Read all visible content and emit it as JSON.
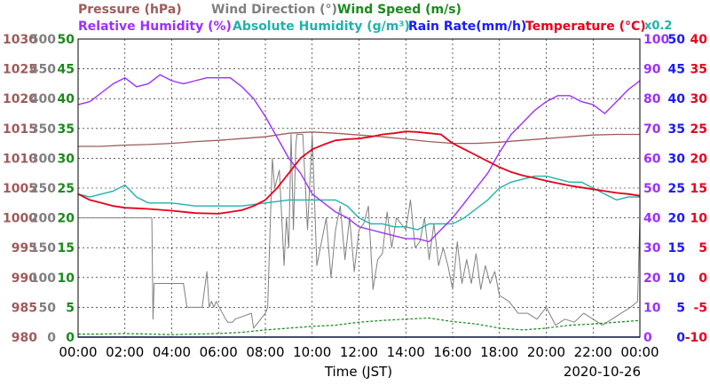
{
  "chart_data": {
    "type": "line",
    "date": "2020-10-26",
    "xlabel": "Time (JST)",
    "x_ticks": [
      "00:00",
      "02:00",
      "04:00",
      "06:00",
      "08:00",
      "10:00",
      "12:00",
      "14:00",
      "16:00",
      "18:00",
      "20:00",
      "22:00",
      "00:00"
    ],
    "grid": true,
    "axes": [
      {
        "name": "Pressure (hPa)",
        "color": "#a05a5a",
        "range": [
          980,
          1030
        ],
        "ticks": [
          "1030",
          "1025",
          "1020",
          "1015",
          "1010",
          "1005",
          "1000",
          "995",
          "990",
          "985",
          "980"
        ]
      },
      {
        "name": "Wind Direction (°)",
        "color": "#808080",
        "range": [
          0,
          500
        ],
        "ticks": [
          "500",
          "450",
          "400",
          "350",
          "300",
          "250",
          "200",
          "150",
          "100",
          "50",
          "0"
        ]
      },
      {
        "name": "Wind Speed (m/s)",
        "color": "#1a8a1a",
        "range": [
          0,
          50
        ],
        "ticks": [
          "50",
          "45",
          "40",
          "35",
          "30",
          "25",
          "20",
          "15",
          "10",
          "5",
          "0"
        ]
      },
      {
        "name": "Relative Humidity (%)",
        "color": "#9b30ff",
        "range": [
          0,
          100
        ],
        "ticks": [
          "100",
          "90",
          "80",
          "70",
          "60",
          "50",
          "40",
          "30",
          "20",
          "10",
          "0"
        ]
      },
      {
        "name": "Absolute Humidity (g/m³) x0.2",
        "color": "#20b2aa",
        "range": [
          0,
          100
        ],
        "ticks": []
      },
      {
        "name": "Rain Rate(mm/h)",
        "color": "#1a1aff",
        "range": [
          0,
          50
        ],
        "ticks": [
          "50",
          "45",
          "40",
          "35",
          "30",
          "25",
          "20",
          "15",
          "10",
          "5",
          "0"
        ]
      },
      {
        "name": "Temperature (°C)",
        "color": "#e8001c",
        "range": [
          -10,
          40
        ],
        "ticks": [
          "40",
          "35",
          "30",
          "25",
          "20",
          "15",
          "10",
          "5",
          "0",
          "-5",
          "-10"
        ]
      }
    ],
    "legend_row1": [
      "Pressure (hPa)",
      "Wind Direction (°)",
      "Wind Speed (m/s)"
    ],
    "legend_row2": [
      "Relative Humidity (%)",
      "Absolute Humidity (g/m³)",
      "Rain Rate(mm/h)",
      "Temperature (°C)"
    ],
    "ah_scale_note": "x0.2",
    "series": [
      {
        "name": "Pressure",
        "axis": 0,
        "color": "#a05a5a",
        "x": [
          0,
          1,
          2,
          3,
          4,
          5,
          6,
          7,
          8,
          9,
          10,
          11,
          12,
          13,
          14,
          15,
          16,
          17,
          18,
          19,
          20,
          21,
          22,
          23,
          24
        ],
        "values": [
          1012,
          1012,
          1012.2,
          1012.3,
          1012.5,
          1012.8,
          1013,
          1013.3,
          1013.6,
          1014.2,
          1014.4,
          1014.2,
          1013.9,
          1013.6,
          1013.2,
          1012.8,
          1012.5,
          1012.5,
          1012.7,
          1013,
          1013.3,
          1013.6,
          1013.9,
          1014,
          1014
        ]
      },
      {
        "name": "Wind Direction",
        "axis": 1,
        "color": "#808080",
        "x": [
          0,
          0.05,
          3.15,
          3.2,
          3.25,
          3.35,
          4.5,
          4.65,
          5.3,
          5.5,
          5.6,
          5.7,
          5.8,
          5.9,
          6.3,
          6.4,
          6.6,
          6.7,
          7.4,
          7.5,
          8.0,
          8.1,
          8.2,
          8.3,
          8.4,
          8.6,
          8.8,
          8.9,
          9.0,
          9.1,
          9.2,
          9.3,
          9.35,
          9.4,
          9.6,
          9.8,
          10.0,
          10.2,
          10.4,
          10.6,
          10.8,
          11.0,
          11.2,
          11.4,
          11.6,
          11.8,
          12.0,
          12.2,
          12.4,
          12.6,
          12.8,
          13.0,
          13.2,
          13.4,
          13.6,
          13.8,
          14.0,
          14.2,
          14.4,
          14.6,
          14.8,
          15.0,
          15.2,
          15.4,
          15.6,
          15.8,
          16.0,
          16.2,
          16.4,
          16.6,
          16.8,
          17.0,
          17.2,
          17.4,
          17.6,
          17.8,
          18.0,
          18.4,
          18.8,
          19.2,
          19.6,
          20.0,
          20.4,
          20.8,
          21.2,
          21.6,
          22.0,
          22.4,
          22.8,
          23.2,
          23.6,
          23.9,
          24
        ],
        "values": [
          200,
          200,
          200,
          30,
          90,
          90,
          90,
          50,
          50,
          110,
          50,
          60,
          50,
          60,
          30,
          25,
          25,
          30,
          40,
          15,
          40,
          50,
          180,
          300,
          250,
          280,
          120,
          200,
          150,
          340,
          180,
          320,
          340,
          340,
          340,
          180,
          340,
          120,
          160,
          200,
          100,
          180,
          220,
          130,
          200,
          110,
          180,
          190,
          220,
          80,
          130,
          140,
          210,
          150,
          200,
          190,
          180,
          230,
          150,
          160,
          200,
          130,
          190,
          120,
          150,
          120,
          80,
          160,
          90,
          130,
          90,
          140,
          80,
          120,
          90,
          110,
          70,
          60,
          40,
          40,
          30,
          50,
          20,
          30,
          25,
          40,
          30,
          20,
          30,
          40,
          50,
          60,
          200
        ]
      },
      {
        "name": "Wind Speed",
        "axis": 2,
        "color": "#1a8a1a",
        "x": [
          0,
          1,
          2,
          3,
          4,
          5,
          6,
          7,
          8,
          9,
          10,
          11,
          12,
          13,
          14,
          15,
          16,
          17,
          18,
          19,
          20,
          21,
          22,
          23,
          24
        ],
        "values": [
          0.5,
          0.5,
          0.6,
          0.5,
          0.4,
          0.5,
          0.6,
          0.8,
          1.2,
          1.5,
          1.8,
          2,
          2.5,
          2.8,
          3,
          3.2,
          2.6,
          2.2,
          1.5,
          1.2,
          1.5,
          2,
          2.2,
          2.5,
          2.8
        ]
      },
      {
        "name": "Relative Humidity",
        "axis": 3,
        "color": "#9b30ff",
        "x": [
          0,
          0.5,
          1,
          1.5,
          2,
          2.5,
          3,
          3.5,
          4,
          4.5,
          5,
          5.5,
          6,
          6.5,
          7,
          7.5,
          8,
          8.5,
          9,
          9.5,
          10,
          10.5,
          11,
          11.5,
          12,
          12.5,
          13,
          13.5,
          14,
          14.5,
          15,
          15.5,
          16,
          16.5,
          17,
          17.5,
          18,
          18.5,
          19,
          19.5,
          20,
          20.5,
          21,
          21.5,
          22,
          22.5,
          23,
          23.5,
          24
        ],
        "values": [
          78,
          79,
          82,
          85,
          87,
          84,
          85,
          88,
          86,
          85,
          86,
          87,
          87,
          87,
          84,
          80,
          74,
          67,
          60,
          55,
          48,
          45,
          42,
          40,
          37,
          36,
          35,
          34,
          33,
          33,
          32,
          36,
          40,
          45,
          50,
          55,
          62,
          68,
          72,
          76,
          79,
          81,
          81,
          79,
          78,
          75,
          79,
          83,
          86
        ]
      },
      {
        "name": "Absolute Humidity",
        "axis": 4,
        "color": "#20b2aa",
        "x": [
          0,
          0.5,
          1,
          1.5,
          2,
          2.5,
          3,
          4,
          5,
          6,
          7,
          8,
          9,
          10,
          10.5,
          11,
          11.5,
          12,
          12.5,
          13,
          13.5,
          14,
          14.5,
          15,
          15.5,
          16,
          16.5,
          17,
          17.5,
          18,
          18.5,
          19,
          19.5,
          20,
          20.5,
          21,
          21.5,
          22,
          22.5,
          23,
          23.5,
          24
        ],
        "values": [
          48,
          47,
          48,
          49,
          51,
          47,
          45,
          45,
          44,
          44,
          44,
          45,
          46,
          46,
          46,
          46,
          44,
          40,
          38,
          38,
          37,
          37,
          36,
          38,
          38,
          38,
          40,
          43,
          46,
          50,
          52,
          53,
          54,
          54,
          53,
          52,
          52,
          50,
          48,
          46,
          47,
          47
        ]
      },
      {
        "name": "Rain Rate",
        "axis": 5,
        "color": "#1a1aff",
        "x": [
          0,
          24
        ],
        "values": [
          0,
          0
        ]
      },
      {
        "name": "Temperature",
        "axis": 6,
        "color": "#e8001c",
        "x": [
          0,
          0.5,
          1,
          1.5,
          2,
          2.5,
          3,
          4,
          5,
          6,
          7,
          7.5,
          8,
          8.5,
          9,
          9.5,
          10,
          10.5,
          11,
          11.5,
          12,
          12.5,
          13,
          13.5,
          14,
          14.5,
          15,
          15.5,
          16,
          16.5,
          17,
          17.5,
          18,
          18.5,
          19,
          19.5,
          20,
          20.5,
          21,
          21.5,
          22,
          22.5,
          23,
          23.5,
          24
        ],
        "values": [
          14,
          13,
          12.5,
          12,
          11.7,
          11.6,
          11.5,
          11.2,
          10.8,
          10.7,
          11.3,
          12,
          13,
          15,
          17.5,
          20,
          21.5,
          22.3,
          23,
          23.2,
          23.3,
          23.6,
          24,
          24.2,
          24.5,
          24.4,
          24.2,
          24,
          22.5,
          21.5,
          20.5,
          19.5,
          18.5,
          17.7,
          17.1,
          16.7,
          16.2,
          15.8,
          15.4,
          15.1,
          14.8,
          14.5,
          14.2,
          14,
          13.7
        ]
      }
    ]
  }
}
